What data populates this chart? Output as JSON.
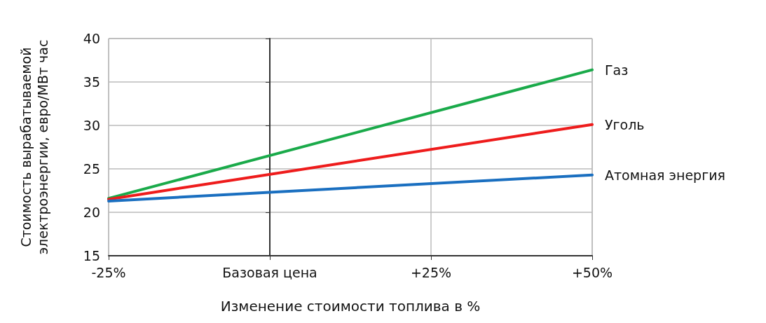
{
  "chart_data": {
    "type": "line",
    "xlabel": "Изменение стоимости топлива в %",
    "ylabel": "Стоимость вырабатываемой\nэлектроэнергии, евро/МВт час",
    "x": [
      -25,
      50
    ],
    "series": [
      {
        "name": "Газ",
        "color": "#1aaa4a",
        "values": [
          21.6,
          36.4
        ]
      },
      {
        "name": "Уголь",
        "color": "#ee1c1c",
        "values": [
          21.5,
          30.1
        ]
      },
      {
        "name": "Атомная энергия",
        "color": "#1a6fc0",
        "values": [
          21.3,
          24.3
        ]
      }
    ],
    "xlim": [
      -25,
      50
    ],
    "xticks": [
      {
        "value": -25,
        "label": "-25%"
      },
      {
        "value": 0,
        "label": "Базовая цена"
      },
      {
        "value": 25,
        "label": "+25%"
      },
      {
        "value": 50,
        "label": "+50%"
      }
    ],
    "ylim": [
      15,
      40
    ],
    "yticks": [
      15,
      20,
      25,
      30,
      35,
      40
    ],
    "grid": true,
    "legend": false,
    "marker": "none",
    "line_style": "solid"
  }
}
